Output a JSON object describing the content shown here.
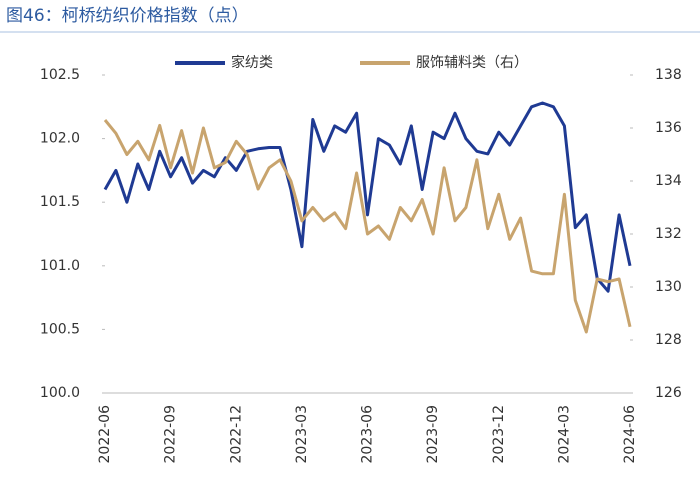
{
  "chart_data": {
    "type": "line",
    "title": "图46：柯桥纺织价格指数（点）",
    "categories": [
      "2022-06",
      null,
      null,
      null,
      null,
      null,
      "2022-09",
      null,
      null,
      null,
      null,
      null,
      "2022-12",
      null,
      null,
      null,
      null,
      null,
      "2023-03",
      null,
      null,
      null,
      null,
      null,
      "2023-06",
      null,
      null,
      null,
      null,
      null,
      "2023-09",
      null,
      null,
      null,
      null,
      null,
      "2023-12",
      null,
      null,
      null,
      null,
      null,
      "2024-03",
      null,
      null,
      null,
      null,
      null,
      "2024-06"
    ],
    "series": [
      {
        "name": "家纺类",
        "color": "#1f3a93",
        "axis": "y",
        "values": [
          101.6,
          101.75,
          101.5,
          101.8,
          101.6,
          101.9,
          101.7,
          101.85,
          101.65,
          101.75,
          101.7,
          101.85,
          101.75,
          101.9,
          101.92,
          101.93,
          101.93,
          101.6,
          101.15,
          102.15,
          101.9,
          102.1,
          102.05,
          102.2,
          101.4,
          102.0,
          101.95,
          101.8,
          102.1,
          101.6,
          102.05,
          102.0,
          102.2,
          102.0,
          101.9,
          101.88,
          102.05,
          101.95,
          102.1,
          102.25,
          102.28,
          102.25,
          102.1,
          101.3,
          101.4,
          100.9,
          100.8,
          101.4,
          101.0
        ]
      },
      {
        "name": "服饰辅料类（右）",
        "color": "#c8a46e",
        "axis": "y2",
        "values": [
          136.3,
          135.8,
          135.0,
          135.5,
          134.8,
          136.1,
          134.5,
          135.9,
          134.3,
          136.0,
          134.5,
          134.7,
          135.5,
          135.0,
          133.7,
          134.5,
          134.8,
          134.0,
          132.5,
          133.0,
          132.5,
          132.8,
          132.2,
          134.3,
          132.0,
          132.3,
          131.8,
          133.0,
          132.5,
          133.3,
          132.0,
          134.5,
          132.5,
          133.0,
          134.8,
          132.2,
          133.5,
          131.8,
          132.6,
          130.6,
          130.5,
          130.5,
          133.5,
          129.5,
          128.3,
          130.3,
          130.2,
          130.3,
          128.5
        ]
      }
    ],
    "ylim": [
      100,
      102.5
    ],
    "yticks": [
      {
        "value": 100,
        "label": "100.0"
      },
      100.5,
      {
        "value": 101,
        "label": "101.0"
      },
      101.5,
      {
        "value": 102,
        "label": "102.0"
      },
      102.5
    ],
    "y2lim": [
      126,
      138
    ],
    "y2ticks": [
      126,
      128,
      130,
      132,
      134,
      136,
      138
    ],
    "grid": false,
    "legend": "top"
  }
}
